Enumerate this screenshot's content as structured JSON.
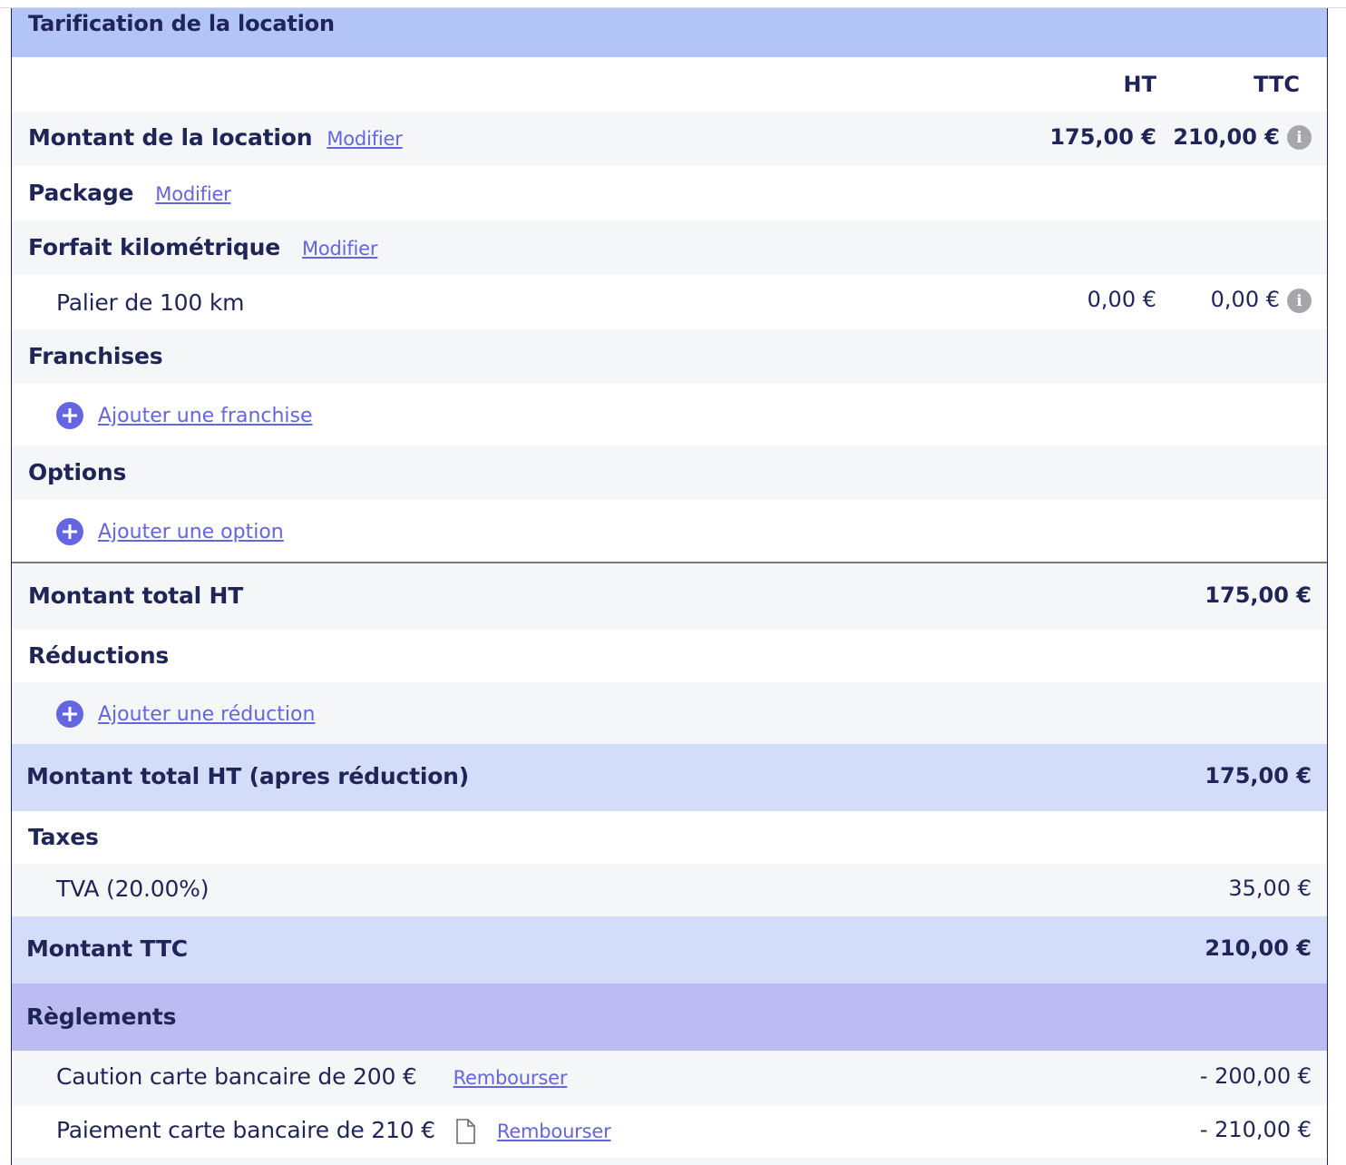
{
  "section_title": "Tarification de la location",
  "columns": {
    "ht": "HT",
    "ttc": "TTC"
  },
  "rows": {
    "montant_location": {
      "label": "Montant de la location",
      "link": "Modifier",
      "ht": "175,00 €",
      "ttc": "210,00 €"
    },
    "package": {
      "label": "Package",
      "link": "Modifier"
    },
    "forfait": {
      "label": "Forfait kilométrique",
      "link": "Modifier"
    },
    "palier": {
      "label": "Palier de 100 km",
      "ht": "0,00 €",
      "ttc": "0,00 €"
    },
    "franchises": {
      "label": "Franchises",
      "add": "Ajouter une franchise"
    },
    "options": {
      "label": "Options",
      "add": "Ajouter une option"
    },
    "total_ht": {
      "label": "Montant total HT",
      "value": "175,00 €"
    },
    "reductions": {
      "label": "Réductions",
      "add": "Ajouter une réduction"
    },
    "total_ht_apres": {
      "label": "Montant total HT (apres réduction)",
      "value": "175,00 €"
    },
    "taxes": {
      "label": "Taxes"
    },
    "tva": {
      "label": "TVA (20.00%)",
      "value": "35,00 €"
    },
    "montant_ttc": {
      "label": "Montant TTC",
      "value": "210,00 €"
    }
  },
  "reglements": {
    "title": "Règlements",
    "items": [
      {
        "label": "Caution carte bancaire de 200 €",
        "action": "Rembourser",
        "value": "- 200,00 €"
      },
      {
        "label": "Paiement carte bancaire de 210 €",
        "action": "Rembourser",
        "value": "- 210,00 €"
      }
    ]
  },
  "icons": {
    "info": "info-icon",
    "add": "plus-circle-icon",
    "document": "document-icon"
  },
  "colors": {
    "header_blue": "#b3c4f6",
    "total_blue": "#d3dcf8",
    "reglement_purple": "#bcbcf2",
    "link": "#6366e0",
    "text": "#1f2557"
  }
}
